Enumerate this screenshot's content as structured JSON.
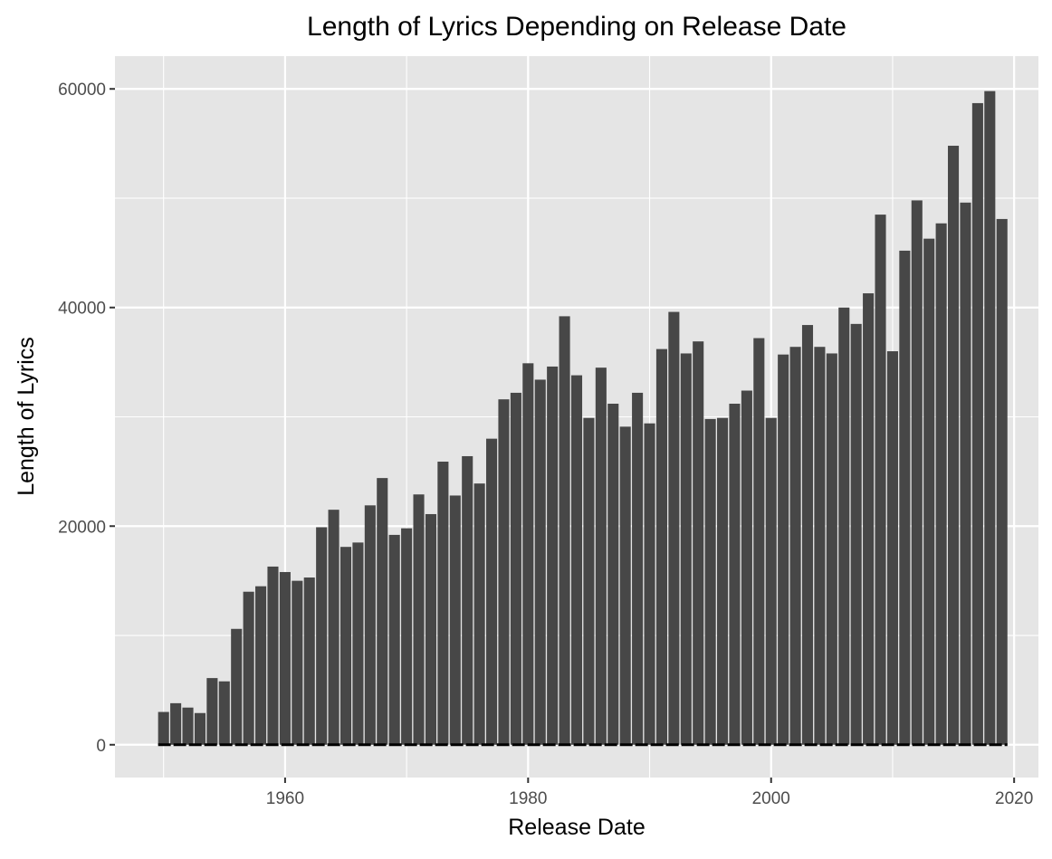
{
  "chart_data": {
    "type": "bar",
    "title": "Length of Lyrics Depending on Release Date",
    "xlabel": "Release Date",
    "ylabel": "Length of Lyrics",
    "xlim": [
      1946,
      2022
    ],
    "ylim": [
      -3000,
      63000
    ],
    "x_ticks": [
      1960,
      1980,
      2000,
      2020
    ],
    "x_tick_labels": [
      "1960",
      "1980",
      "2000",
      "2020"
    ],
    "y_ticks": [
      0,
      20000,
      40000,
      60000
    ],
    "y_tick_labels": [
      "0",
      "20000",
      "40000",
      "60000"
    ],
    "grid": true,
    "legend": "none",
    "colors": {
      "panel": "#e5e5e5",
      "grid": "#ffffff",
      "bar": "#474747",
      "baseline": "#000000"
    },
    "x": [
      1950,
      1951,
      1952,
      1953,
      1954,
      1955,
      1956,
      1957,
      1958,
      1959,
      1960,
      1961,
      1962,
      1963,
      1964,
      1965,
      1966,
      1967,
      1968,
      1969,
      1970,
      1971,
      1972,
      1973,
      1974,
      1975,
      1976,
      1977,
      1978,
      1979,
      1980,
      1981,
      1982,
      1983,
      1984,
      1985,
      1986,
      1987,
      1988,
      1989,
      1990,
      1991,
      1992,
      1993,
      1994,
      1995,
      1996,
      1997,
      1998,
      1999,
      2000,
      2001,
      2002,
      2003,
      2004,
      2005,
      2006,
      2007,
      2008,
      2009,
      2010,
      2011,
      2012,
      2013,
      2014,
      2015,
      2016,
      2017,
      2018,
      2019
    ],
    "values": [
      3000,
      3800,
      3400,
      2900,
      6100,
      5800,
      10600,
      14000,
      14500,
      16300,
      15800,
      15000,
      15300,
      19900,
      21500,
      18100,
      18500,
      21900,
      24400,
      19200,
      19800,
      22900,
      21100,
      25900,
      22800,
      26400,
      23900,
      28000,
      31600,
      32200,
      34900,
      33400,
      34600,
      39200,
      33800,
      29900,
      34500,
      31200,
      29100,
      32200,
      29400,
      36200,
      39600,
      35800,
      36900,
      29800,
      29900,
      31200,
      32400,
      37200,
      29900,
      35700,
      36400,
      38400,
      36400,
      35800,
      40000,
      38500,
      41300,
      48500,
      36000,
      45200,
      49800,
      46300,
      47700,
      54800,
      49600,
      58700,
      59800,
      48100
    ]
  }
}
